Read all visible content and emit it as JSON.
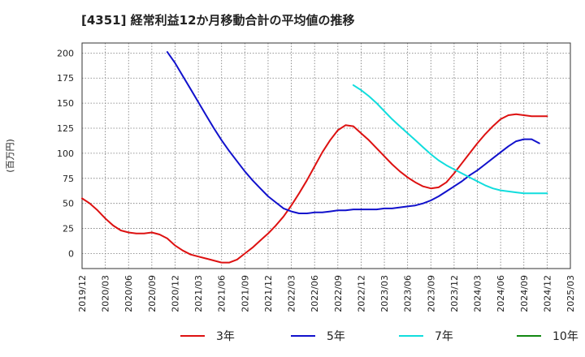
{
  "chart_data": {
    "type": "line",
    "title": "[4351]  経常利益12か月移動合計の平均値の推移",
    "ylabel": "(百万円)",
    "xlabel": "",
    "ylim": [
      -15,
      210
    ],
    "yticks": [
      0,
      25,
      50,
      75,
      100,
      125,
      150,
      175,
      200
    ],
    "x_start": "2019-12",
    "x_end": "2025-03",
    "xticks": [
      "2019/12",
      "2020/03",
      "2020/06",
      "2020/09",
      "2020/12",
      "2021/03",
      "2021/06",
      "2021/09",
      "2021/12",
      "2022/03",
      "2022/06",
      "2022/09",
      "2022/12",
      "2023/03",
      "2023/06",
      "2023/09",
      "2023/12",
      "2024/03",
      "2024/06",
      "2024/09",
      "2024/12",
      "2025/03"
    ],
    "grid": true,
    "legend_position": "bottom",
    "series": [
      {
        "name": "3年",
        "color": "#dd1111",
        "start": "2019-12",
        "values": [
          55,
          50,
          43,
          35,
          28,
          23,
          21,
          20,
          20,
          21,
          19,
          15,
          8,
          3,
          -1,
          -3,
          -5,
          -7,
          -9,
          -9,
          -6,
          0,
          6,
          13,
          20,
          28,
          37,
          48,
          60,
          73,
          87,
          101,
          113,
          123,
          128,
          127,
          120,
          113,
          105,
          97,
          89,
          82,
          76,
          71,
          67,
          65,
          66,
          71,
          80,
          90,
          100,
          110,
          119,
          127,
          134,
          138,
          139,
          138,
          137,
          137,
          137
        ]
      },
      {
        "name": "5年",
        "color": "#1111cc",
        "start": "2020-11",
        "values": [
          201,
          190,
          177,
          164,
          151,
          138,
          125,
          113,
          102,
          92,
          82,
          73,
          65,
          57,
          51,
          45,
          42,
          40,
          40,
          41,
          41,
          42,
          43,
          43,
          44,
          44,
          44,
          44,
          45,
          45,
          46,
          47,
          48,
          50,
          53,
          57,
          62,
          67,
          72,
          78,
          83,
          89,
          95,
          101,
          107,
          112,
          114,
          114,
          110
        ]
      },
      {
        "name": "7年",
        "color": "#11dddd",
        "start": "2022-11",
        "values": [
          168,
          163,
          157,
          150,
          142,
          134,
          127,
          120,
          113,
          106,
          99,
          93,
          88,
          84,
          80,
          76,
          72,
          68,
          65,
          63,
          62,
          61,
          60,
          60,
          60,
          60
        ]
      },
      {
        "name": "10年",
        "color": "#118811",
        "start": "2025-03",
        "values": []
      }
    ]
  }
}
